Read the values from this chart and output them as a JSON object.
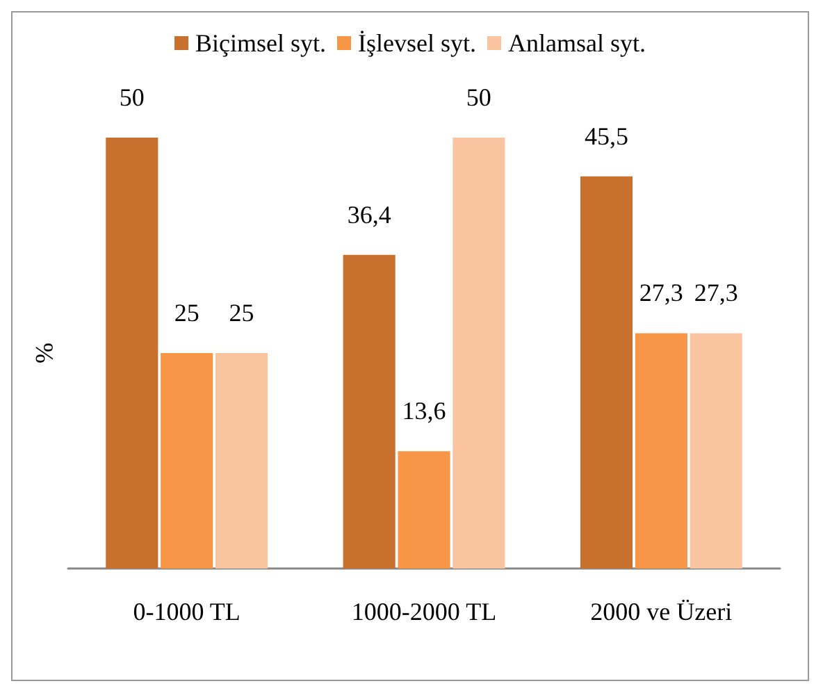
{
  "chart_data": {
    "type": "bar",
    "ylabel": "%",
    "categories": [
      "0-1000 TL",
      "1000-2000 TL",
      "2000 ve Üzeri"
    ],
    "series": [
      {
        "name": "Biçimsel syt.",
        "color": "#c8702e",
        "values": [
          50,
          36.4,
          45.5
        ],
        "value_labels": [
          "50",
          "36,4",
          "45,5"
        ]
      },
      {
        "name": "İşlevsel syt.",
        "color": "#f79646",
        "values": [
          25,
          13.6,
          27.3
        ],
        "value_labels": [
          "25",
          "13,6",
          "27,3"
        ]
      },
      {
        "name": "Anlamsal syt.",
        "color": "#fac4a0",
        "values": [
          25,
          50,
          27.3
        ],
        "value_labels": [
          "25",
          "50",
          "27,3"
        ]
      }
    ],
    "legend": "top",
    "grid": false
  }
}
